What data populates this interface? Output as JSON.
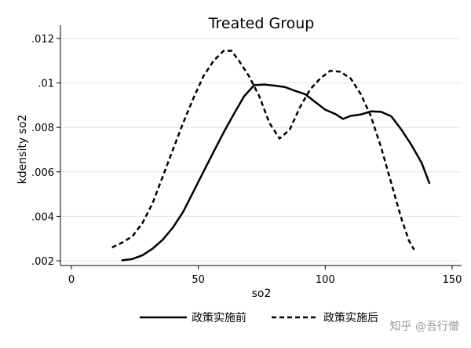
{
  "chart_data": {
    "type": "line",
    "title": "Treated Group",
    "xlabel": "so2",
    "ylabel": "kdensity so2",
    "xlim": [
      0,
      150
    ],
    "ylim": [
      0.002,
      0.012
    ],
    "xticks": [
      {
        "value": 0,
        "label": "0"
      },
      {
        "value": 50,
        "label": "50"
      },
      {
        "value": 100,
        "label": "100"
      },
      {
        "value": 150,
        "label": "150"
      }
    ],
    "yticks": [
      {
        "value": 0.002,
        "label": ".002"
      },
      {
        "value": 0.004,
        "label": ".004"
      },
      {
        "value": 0.006,
        "label": ".006"
      },
      {
        "value": 0.008,
        "label": ".008"
      },
      {
        "value": 0.01,
        "label": ".01"
      },
      {
        "value": 0.012,
        "label": ".012"
      }
    ],
    "grid": "horizontal",
    "legend_position": "bottom",
    "series": [
      {
        "name": "政策实施前",
        "style": "solid",
        "color": "#000000",
        "points": [
          [
            20,
            0.00202
          ],
          [
            24,
            0.00208
          ],
          [
            28,
            0.00225
          ],
          [
            32,
            0.00255
          ],
          [
            36,
            0.00295
          ],
          [
            40,
            0.0035
          ],
          [
            44,
            0.0042
          ],
          [
            48,
            0.0051
          ],
          [
            52,
            0.006
          ],
          [
            56,
            0.0069
          ],
          [
            60,
            0.00778
          ],
          [
            64,
            0.0086
          ],
          [
            68,
            0.0094
          ],
          [
            72,
            0.0099
          ],
          [
            76,
            0.00993
          ],
          [
            80,
            0.00988
          ],
          [
            84,
            0.00982
          ],
          [
            88,
            0.00965
          ],
          [
            92,
            0.0095
          ],
          [
            96,
            0.00915
          ],
          [
            100,
            0.0088
          ],
          [
            104,
            0.0086
          ],
          [
            107,
            0.00838
          ],
          [
            110,
            0.00852
          ],
          [
            114,
            0.00858
          ],
          [
            118,
            0.00872
          ],
          [
            122,
            0.0087
          ],
          [
            126,
            0.0085
          ],
          [
            130,
            0.0079
          ],
          [
            134,
            0.0072
          ],
          [
            138,
            0.0064
          ],
          [
            141,
            0.0055
          ]
        ]
      },
      {
        "name": "政策实施后",
        "style": "dashed",
        "color": "#000000",
        "points": [
          [
            16,
            0.0026
          ],
          [
            20,
            0.00282
          ],
          [
            24,
            0.0031
          ],
          [
            28,
            0.0037
          ],
          [
            32,
            0.0046
          ],
          [
            36,
            0.0058
          ],
          [
            40,
            0.007
          ],
          [
            44,
            0.0082
          ],
          [
            48,
            0.0093
          ],
          [
            52,
            0.0103
          ],
          [
            56,
            0.011
          ],
          [
            60,
            0.01145
          ],
          [
            63,
            0.01145
          ],
          [
            66,
            0.011
          ],
          [
            70,
            0.0103
          ],
          [
            74,
            0.0094
          ],
          [
            78,
            0.0082
          ],
          [
            82,
            0.0075
          ],
          [
            86,
            0.0079
          ],
          [
            90,
            0.0089
          ],
          [
            94,
            0.0097
          ],
          [
            98,
            0.0102
          ],
          [
            102,
            0.01055
          ],
          [
            106,
            0.0105
          ],
          [
            110,
            0.0102
          ],
          [
            114,
            0.0095
          ],
          [
            118,
            0.0085
          ],
          [
            122,
            0.0071
          ],
          [
            126,
            0.0055
          ],
          [
            130,
            0.0039
          ],
          [
            133,
            0.0029
          ],
          [
            135,
            0.0025
          ]
        ]
      }
    ]
  },
  "watermark": "知乎 @吾行僧"
}
